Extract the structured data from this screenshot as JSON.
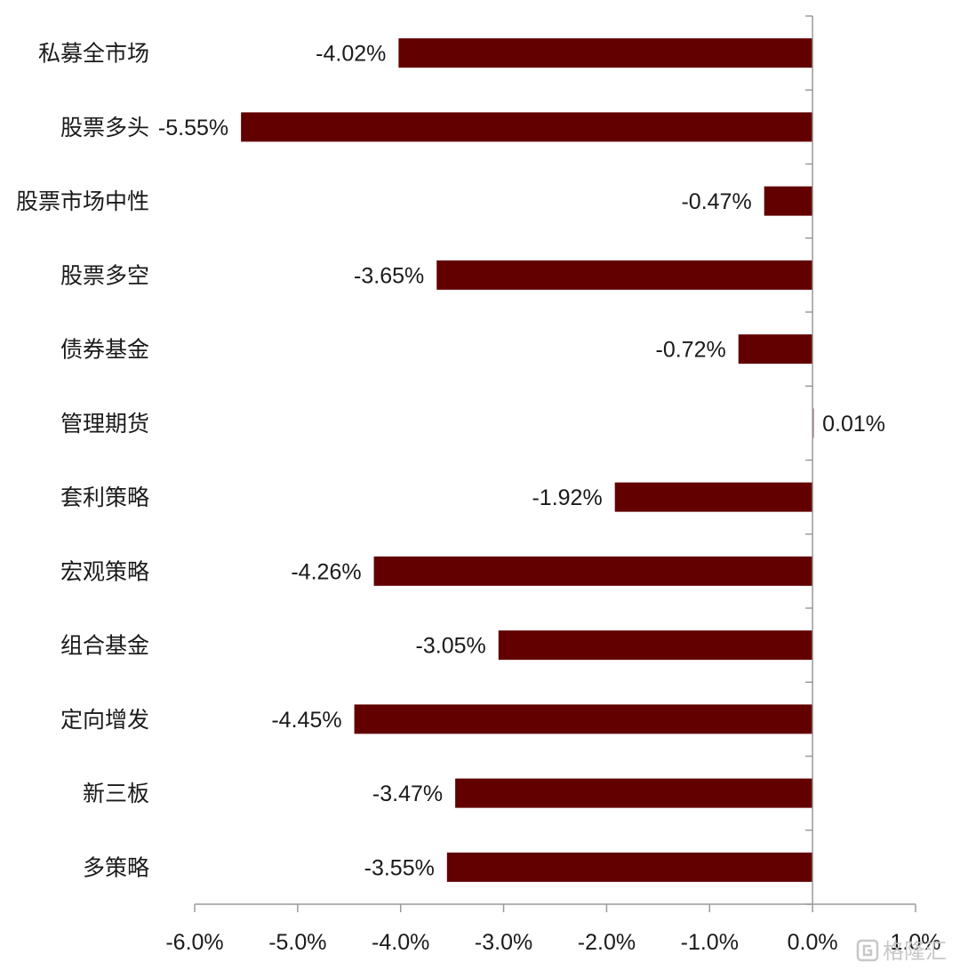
{
  "chart_data": {
    "type": "bar",
    "orientation": "horizontal",
    "title": "",
    "xlabel": "",
    "ylabel": "",
    "categories": [
      "私募全市场",
      "股票多头",
      "股票市场中性",
      "股票多空",
      "债券基金",
      "管理期货",
      "套利策略",
      "宏观策略",
      "组合基金",
      "定向增发",
      "新三板",
      "多策略"
    ],
    "values": [
      -4.02,
      -5.55,
      -0.47,
      -3.65,
      -0.72,
      0.01,
      -1.92,
      -4.26,
      -3.05,
      -4.45,
      -3.47,
      -3.55
    ],
    "value_labels": [
      "-4.02%",
      "-5.55%",
      "-0.47%",
      "-3.65%",
      "-0.72%",
      "0.01%",
      "-1.92%",
      "-4.26%",
      "-3.05%",
      "-4.45%",
      "-3.47%",
      "-3.55%"
    ],
    "xlim": [
      -6.0,
      1.0
    ],
    "xticks": [
      -6,
      -5,
      -4,
      -3,
      -2,
      -1,
      0,
      1
    ],
    "xtick_labels": [
      "-6.0%",
      "-5.0%",
      "-4.0%",
      "-3.0%",
      "-2.0%",
      "-1.0%",
      "0.0%",
      "1.0%"
    ],
    "grid": false,
    "legend": "none",
    "bar_color": "#620000"
  },
  "watermark": {
    "text": "格隆汇",
    "color": "#c7c7c7"
  }
}
